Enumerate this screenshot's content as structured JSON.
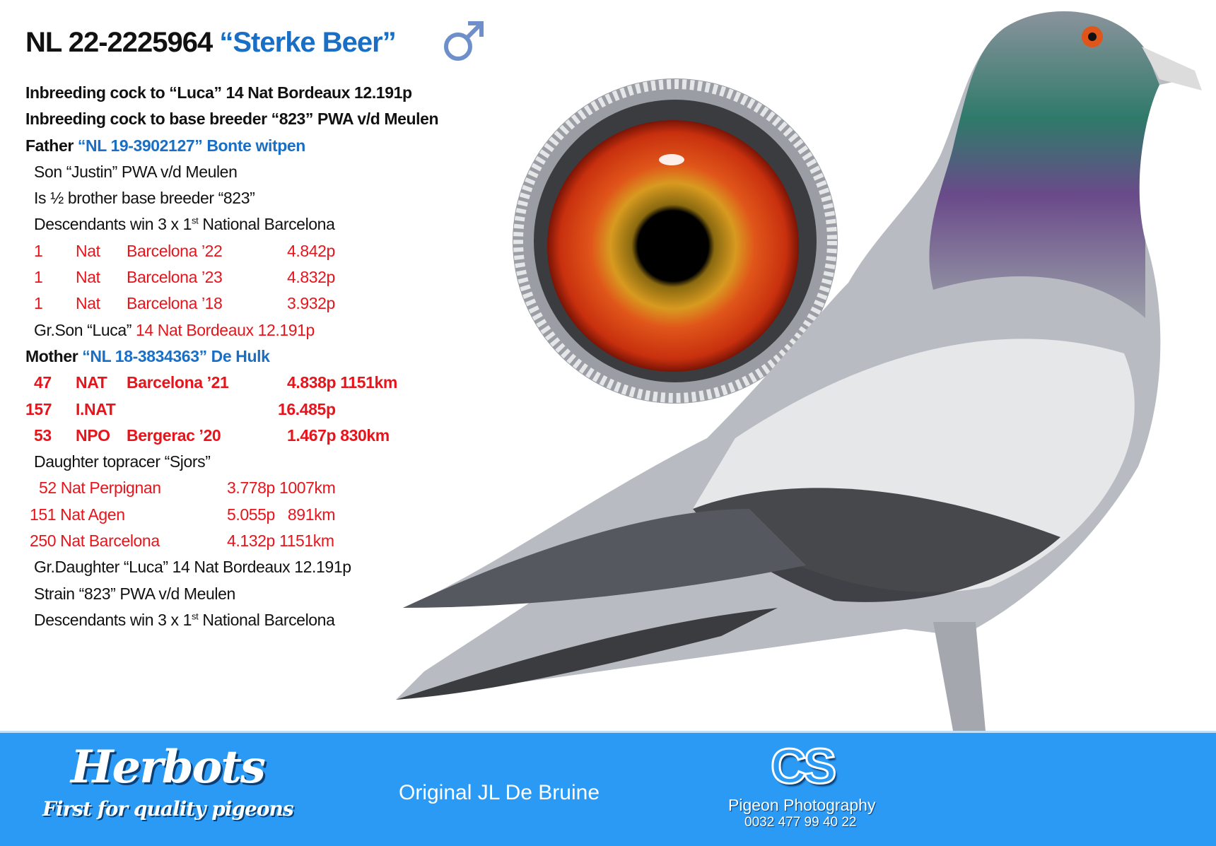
{
  "header": {
    "ring_number": "NL 22-2225964",
    "name": "“Sterke Beer”",
    "sex_icon": "male-symbol-icon"
  },
  "intro": [
    "Inbreeding cock to “Luca” 14 Nat Bordeaux 12.191p",
    "Inbreeding cock to base breeder “823” PWA v/d Meulen"
  ],
  "father": {
    "label": "Father",
    "id": "“NL 19-3902127” Bonte witpen",
    "notes": [
      "Son “Justin” PWA v/d Meulen",
      "Is ½ brother base breeder “823”"
    ],
    "descendants": {
      "pre": "Descendants win 3 x 1",
      "sup": "st",
      "post": " National Barcelona"
    },
    "results": [
      {
        "place": "1",
        "level": "Nat",
        "race": "Barcelona ’22",
        "points": "4.842p"
      },
      {
        "place": "1",
        "level": "Nat",
        "race": "Barcelona ’23",
        "points": "4.832p"
      },
      {
        "place": "1",
        "level": "Nat",
        "race": "Barcelona ’18",
        "points": "3.932p"
      }
    ],
    "grandson": {
      "pre": "Gr.Son “Luca” ",
      "red": "14 Nat Bordeaux 12.191p"
    }
  },
  "mother": {
    "label": "Mother",
    "id": "“NL 18-3834363” De Hulk",
    "results": [
      {
        "place": "47",
        "level": "NAT",
        "race": "Barcelona ’21",
        "points": "4.838p 1151km"
      },
      {
        "place": "157",
        "level": "I.NAT",
        "race": "",
        "points": "16.485p"
      },
      {
        "place": "53",
        "level": "NPO",
        "race": "Bergerac ’20",
        "points": "1.467p  830km"
      }
    ],
    "daughter": "Daughter topracer “Sjors”",
    "daughter_results": [
      {
        "race": "52 Nat Perpignan",
        "points": "3.778p 1007km"
      },
      {
        "race": "151 Nat Agen",
        "points": "5.055p   891km"
      },
      {
        "race": "250 Nat Barcelona",
        "points": "4.132p 1151km"
      }
    ],
    "granddaughter": "Gr.Daughter “Luca” 14 Nat Bordeaux 12.191p",
    "strain": "Strain “823” PWA v/d Meulen",
    "descendants": {
      "pre": "Descendants win 3 x 1",
      "sup": "st",
      "post": " National Barcelona"
    }
  },
  "footer": {
    "logo": "Herbots",
    "slogan": "First for quality pigeons",
    "credit": "Original JL De Bruine",
    "photo_logo": "CS",
    "photo_name": "Pigeon Photography",
    "phone": "0032 477 99 40 22"
  },
  "colors": {
    "blue_text": "#1a6fc4",
    "red_text": "#e8141c",
    "banner": "#2b9af5"
  }
}
